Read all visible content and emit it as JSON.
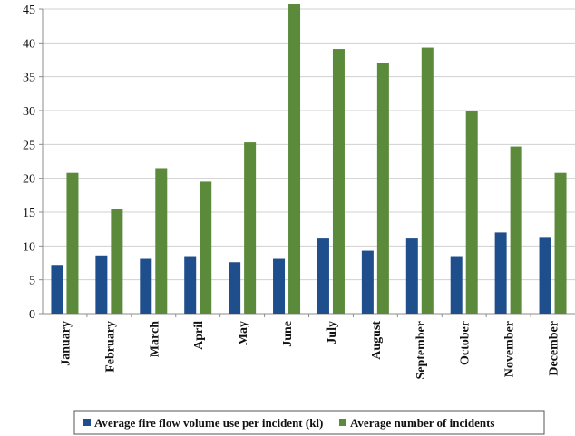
{
  "chart_data": {
    "type": "bar",
    "categories": [
      "January",
      "February",
      "March",
      "April",
      "May",
      "June",
      "July",
      "August",
      "September",
      "October",
      "November",
      "December"
    ],
    "series": [
      {
        "name": "Average fire flow volume use per incident (kl)",
        "color": "#1f4e8c",
        "values": [
          7.2,
          8.6,
          8.1,
          8.5,
          7.6,
          8.1,
          11.1,
          9.3,
          11.1,
          8.5,
          12.0,
          11.2
        ]
      },
      {
        "name": "Average number of incidents",
        "color": "#5a8a3a",
        "values": [
          20.8,
          15.4,
          21.5,
          19.5,
          25.3,
          45.8,
          39.1,
          37.1,
          39.3,
          30.0,
          24.7,
          20.8
        ]
      }
    ],
    "ylim": [
      0,
      45
    ],
    "yticks": [
      0,
      5,
      10,
      15,
      20,
      25,
      30,
      35,
      40,
      45
    ],
    "xlabel": "",
    "ylabel": "",
    "title": "",
    "grid": true,
    "legend_position": "bottom"
  }
}
